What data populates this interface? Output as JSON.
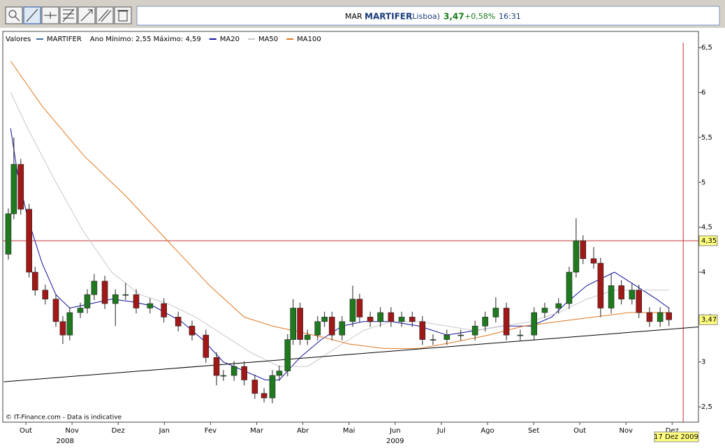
{
  "header": {
    "exchange": "MAR",
    "name": "MARTIFER",
    "market": "(Lisboa)",
    "price": "3,47",
    "change": "+0,58%",
    "time": "16:31"
  },
  "chart_data": {
    "type": "candlestick",
    "legend_title": "Valores",
    "candles": {
      "name": "MARTIFER",
      "note": "Ano Mínimo: 2,55 Máximo: 4,59",
      "color": "#3a6ea5",
      "color_up": "#1f7a1f",
      "color_down": "#a01818",
      "x": [
        0.12,
        0.24,
        0.39,
        0.57,
        0.7,
        0.92,
        1.15,
        1.3,
        1.45,
        1.68,
        1.83,
        1.98,
        2.21,
        2.44,
        2.66,
        2.89,
        3.19,
        3.49,
        3.8,
        4.1,
        4.4,
        4.63,
        4.78,
        5.01,
        5.23,
        5.46,
        5.66,
        5.84,
        5.99,
        6.17,
        6.29,
        6.44,
        6.6,
        6.82,
        6.97,
        7.13,
        7.35,
        7.58,
        7.73,
        7.96,
        8.18,
        8.41,
        8.64,
        8.87,
        9.09,
        9.32,
        9.62,
        9.92,
        10.23,
        10.45,
        10.68,
        10.91,
        11.21,
        11.51,
        11.74,
        12.04,
        12.27,
        12.42,
        12.57,
        12.8,
        12.95,
        13.18,
        13.4,
        13.63,
        13.78,
        14.01,
        14.24,
        14.43
      ],
      "open": [
        4.2,
        4.65,
        5.2,
        4.7,
        4.0,
        3.8,
        3.7,
        3.45,
        3.3,
        3.55,
        3.6,
        3.75,
        3.9,
        3.65,
        3.75,
        3.75,
        3.6,
        3.65,
        3.5,
        3.4,
        3.3,
        3.05,
        2.85,
        2.85,
        2.95,
        2.8,
        2.65,
        2.6,
        2.85,
        2.9,
        3.25,
        3.6,
        3.25,
        3.3,
        3.45,
        3.5,
        3.3,
        3.45,
        3.7,
        3.5,
        3.45,
        3.55,
        3.45,
        3.5,
        3.45,
        3.25,
        3.25,
        3.3,
        3.3,
        3.4,
        3.5,
        3.6,
        3.3,
        3.3,
        3.55,
        3.6,
        3.65,
        4.0,
        4.35,
        4.15,
        4.1,
        3.6,
        3.85,
        3.7,
        3.8,
        3.55,
        3.45,
        3.55
      ],
      "high": [
        4.71,
        5.5,
        5.26,
        4.76,
        4.06,
        3.86,
        3.76,
        3.51,
        3.61,
        3.66,
        3.81,
        3.98,
        3.96,
        3.81,
        3.88,
        3.81,
        3.71,
        3.71,
        3.56,
        3.46,
        3.36,
        3.11,
        2.91,
        3.01,
        3.01,
        2.86,
        2.71,
        2.91,
        2.96,
        3.31,
        3.7,
        3.66,
        3.36,
        3.51,
        3.56,
        3.56,
        3.51,
        3.85,
        3.76,
        3.56,
        3.61,
        3.61,
        3.56,
        3.56,
        3.51,
        3.31,
        3.36,
        3.36,
        3.46,
        3.56,
        3.72,
        3.66,
        3.36,
        3.61,
        3.66,
        3.71,
        4.06,
        4.6,
        4.41,
        4.28,
        4.16,
        3.98,
        3.91,
        3.88,
        3.86,
        3.61,
        3.61,
        3.61
      ],
      "low": [
        4.14,
        4.59,
        4.64,
        3.94,
        3.74,
        3.64,
        3.39,
        3.2,
        3.24,
        3.49,
        3.54,
        3.69,
        3.59,
        3.4,
        3.69,
        3.54,
        3.54,
        3.44,
        3.34,
        3.24,
        2.99,
        2.74,
        2.79,
        2.79,
        2.74,
        2.59,
        2.55,
        2.54,
        2.79,
        2.84,
        3.19,
        3.19,
        3.19,
        3.24,
        3.39,
        3.24,
        3.24,
        3.39,
        3.44,
        3.39,
        3.39,
        3.39,
        3.39,
        3.39,
        3.19,
        3.19,
        3.19,
        3.24,
        3.24,
        3.34,
        3.44,
        3.24,
        3.24,
        3.24,
        3.49,
        3.54,
        3.59,
        3.94,
        4.09,
        4.04,
        3.5,
        3.54,
        3.64,
        3.64,
        3.49,
        3.39,
        3.39,
        3.4
      ],
      "close": [
        4.65,
        5.2,
        4.7,
        4.0,
        3.8,
        3.7,
        3.45,
        3.3,
        3.55,
        3.6,
        3.75,
        3.9,
        3.65,
        3.75,
        3.75,
        3.6,
        3.65,
        3.5,
        3.4,
        3.3,
        3.05,
        2.85,
        2.85,
        2.95,
        2.8,
        2.65,
        2.6,
        2.85,
        2.9,
        3.25,
        3.6,
        3.25,
        3.3,
        3.45,
        3.5,
        3.3,
        3.45,
        3.7,
        3.5,
        3.45,
        3.55,
        3.45,
        3.5,
        3.45,
        3.25,
        3.25,
        3.3,
        3.3,
        3.4,
        3.5,
        3.6,
        3.3,
        3.3,
        3.55,
        3.6,
        3.65,
        4.0,
        4.35,
        4.15,
        4.1,
        3.6,
        3.85,
        3.7,
        3.8,
        3.55,
        3.45,
        3.55,
        3.47
      ]
    },
    "series": [
      {
        "name": "MA20",
        "color": "#1010a0",
        "x": [
          0.17,
          0.32,
          0.54,
          0.85,
          1.15,
          1.45,
          1.91,
          2.36,
          2.81,
          3.27,
          3.87,
          4.33,
          4.78,
          5.23,
          5.69,
          5.99,
          6.44,
          6.9,
          7.35,
          7.81,
          8.41,
          9.02,
          9.62,
          10.23,
          10.83,
          11.44,
          11.89,
          12.19,
          12.65,
          13.25,
          13.71,
          14.16,
          14.43
        ],
        "values": [
          5.6,
          5.1,
          4.6,
          4.1,
          3.75,
          3.6,
          3.65,
          3.7,
          3.67,
          3.62,
          3.45,
          3.25,
          3.0,
          2.9,
          2.8,
          2.8,
          3.05,
          3.25,
          3.4,
          3.45,
          3.45,
          3.4,
          3.3,
          3.35,
          3.4,
          3.4,
          3.5,
          3.65,
          3.85,
          4.0,
          3.85,
          3.7,
          3.6
        ]
      },
      {
        "name": "MA50",
        "color": "#c8c8c8",
        "x": [
          0.17,
          0.54,
          1.15,
          1.75,
          2.36,
          2.97,
          3.57,
          4.18,
          4.78,
          5.39,
          5.99,
          6.6,
          7.2,
          7.81,
          8.41,
          9.02,
          9.62,
          10.23,
          10.83,
          11.44,
          12.04,
          12.65,
          13.25,
          13.86,
          14.43
        ],
        "values": [
          6.0,
          5.6,
          5.0,
          4.45,
          4.0,
          3.75,
          3.65,
          3.5,
          3.3,
          3.1,
          2.95,
          2.95,
          3.15,
          3.35,
          3.45,
          3.45,
          3.4,
          3.35,
          3.4,
          3.45,
          3.55,
          3.7,
          3.8,
          3.8,
          3.8
        ]
      },
      {
        "name": "MA100",
        "color": "#e07820",
        "x": [
          0.17,
          0.85,
          1.75,
          2.66,
          3.57,
          4.48,
          5.23,
          5.84,
          6.29,
          6.9,
          7.5,
          8.26,
          9.02,
          9.77,
          10.53,
          11.29,
          12.04,
          12.8,
          13.56,
          14.43
        ],
        "values": [
          6.35,
          5.85,
          5.3,
          4.85,
          4.35,
          3.85,
          3.5,
          3.4,
          3.35,
          3.28,
          3.2,
          3.15,
          3.15,
          3.22,
          3.3,
          3.4,
          3.45,
          3.5,
          3.55,
          3.55
        ]
      }
    ],
    "trendline": {
      "x": [
        0.02,
        15.07
      ],
      "values": [
        2.78,
        3.39
      ]
    },
    "hline": {
      "value": 4.35,
      "label": "4,35",
      "color": "#c03030"
    },
    "last_price": {
      "value": 3.47,
      "label": "3,47"
    },
    "cursor": {
      "x": 14.74,
      "label": "17 Dez 2009",
      "color": "#c03030"
    },
    "annotation": "© IT-Finance.com - Data is indicative",
    "xlim": [
      0,
      15.07
    ],
    "xticks": [
      {
        "value": 0.5,
        "label": "Out"
      },
      {
        "value": 1.5,
        "label": "Nov"
      },
      {
        "value": 2.5,
        "label": "Dez"
      },
      {
        "value": 3.5,
        "label": "Jan"
      },
      {
        "value": 4.5,
        "label": "Fev"
      },
      {
        "value": 5.5,
        "label": "Mar"
      },
      {
        "value": 6.5,
        "label": "Abr"
      },
      {
        "value": 7.5,
        "label": "Mai"
      },
      {
        "value": 8.5,
        "label": "Jun"
      },
      {
        "value": 9.5,
        "label": "Jul"
      },
      {
        "value": 10.5,
        "label": "Ago"
      },
      {
        "value": 11.5,
        "label": "Set"
      },
      {
        "value": 12.5,
        "label": "Out"
      },
      {
        "value": 13.5,
        "label": "Nov"
      },
      {
        "value": 14.5,
        "label": "Dez"
      }
    ],
    "x_groups": [
      {
        "value": 1.35,
        "label": "2008"
      },
      {
        "value": 8.5,
        "label": "2009"
      }
    ],
    "ylim": [
      2.33,
      6.68
    ],
    "yticks": [
      {
        "value": 2.5,
        "label": "2,5"
      },
      3,
      {
        "value": 3.5,
        "label": "3,5"
      },
      4,
      {
        "value": 4.5,
        "label": "4,5"
      },
      5,
      {
        "value": 5.5,
        "label": "5,5"
      },
      6,
      {
        "value": 6.5,
        "label": "6,5"
      }
    ]
  }
}
